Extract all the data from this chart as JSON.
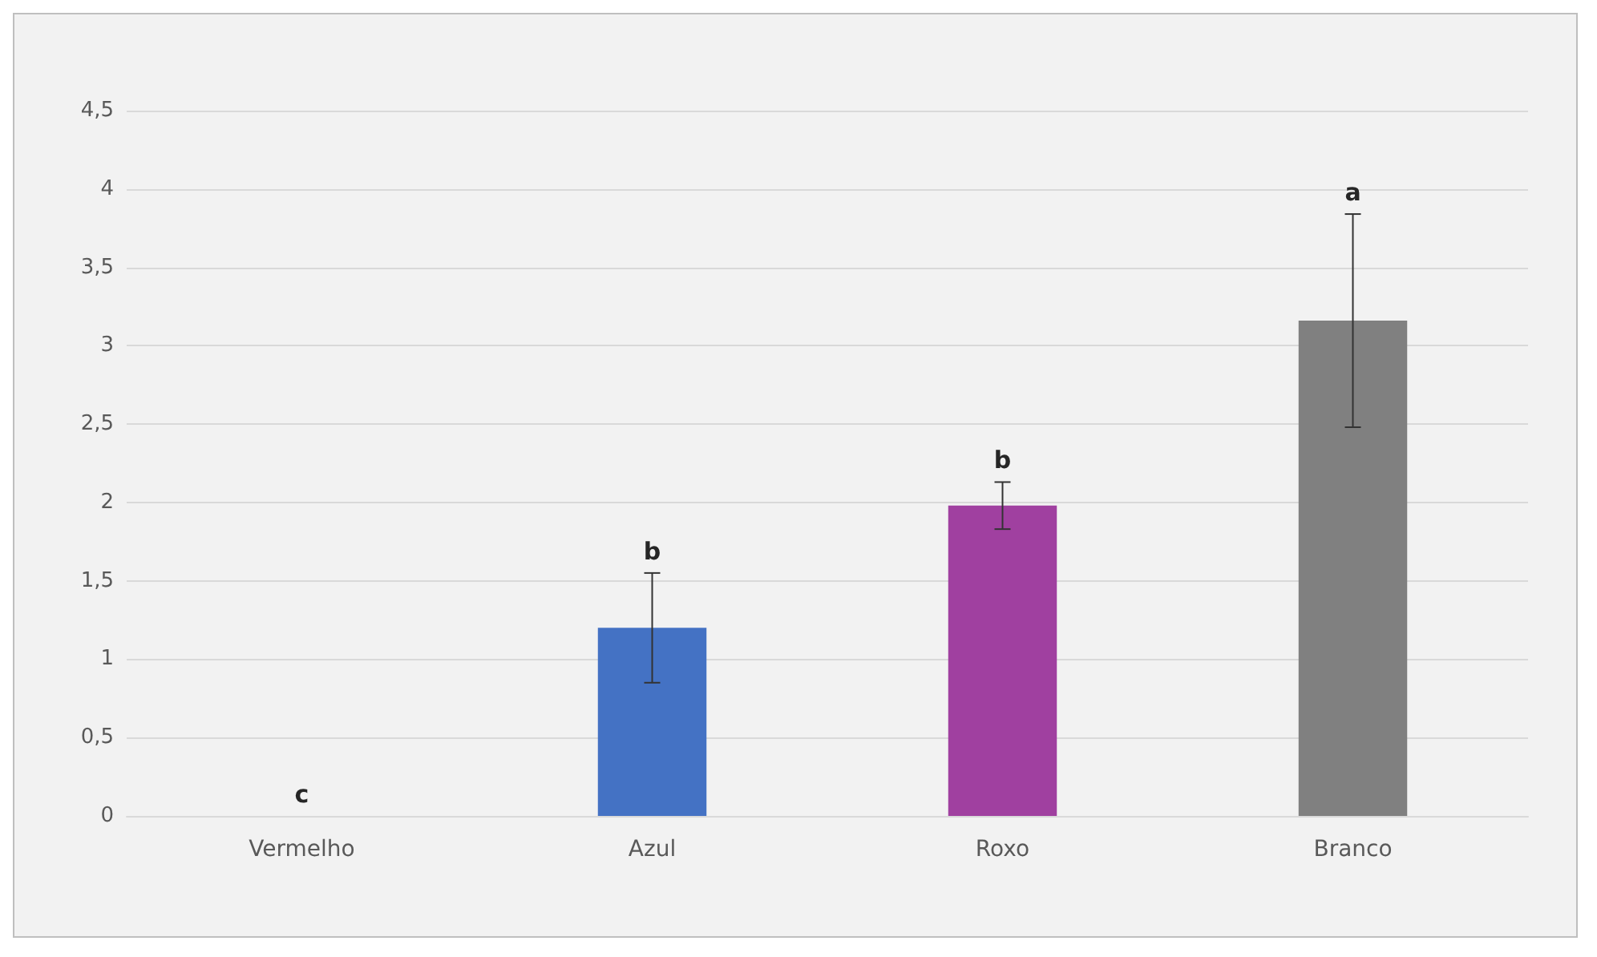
{
  "chart_data": {
    "type": "bar",
    "categories": [
      "Vermelho",
      "Azul",
      "Roxo",
      "Branco"
    ],
    "values": [
      0,
      1.2,
      1.98,
      3.16
    ],
    "colors": [
      "#c00000",
      "#4472c4",
      "#a040a0",
      "#808080"
    ],
    "errors": [
      null,
      0.35,
      0.15,
      0.68
    ],
    "ylim": [
      0,
      4.5
    ],
    "yticks": [
      0,
      {
        "value": 0.5,
        "label": "0,5"
      },
      1,
      {
        "value": 1.5,
        "label": "1,5"
      },
      2,
      {
        "value": 2.5,
        "label": "2,5"
      },
      3,
      {
        "value": 3.5,
        "label": "3,5"
      },
      4,
      {
        "value": 4.5,
        "label": "4,5"
      }
    ],
    "grid": "y",
    "annotations": [
      {
        "text": "c",
        "x": "Vermelho",
        "y": 0
      },
      {
        "text": "b",
        "x": "Azul",
        "y": 1.55
      },
      {
        "text": "b",
        "x": "Roxo",
        "y": 2.13
      },
      {
        "text": "a",
        "x": "Branco",
        "y": 3.84
      }
    ]
  }
}
